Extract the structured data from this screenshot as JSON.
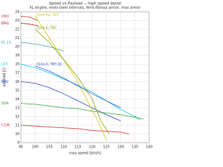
{
  "chart_data": {
    "type": "line",
    "title": "Speed vs Payload -- high speed detail",
    "subtitle": "XL engine, endo-steel internals, ferro-fibrous armor, max armor",
    "x_label": "max speed [km/h]",
    "y_label": "payload [t]",
    "xlim": [
      95,
      140
    ],
    "xticks": [
      95,
      100,
      105,
      110,
      115,
      120,
      125,
      130,
      135,
      140
    ],
    "ylim": [
      9,
      24
    ],
    "yticks": [
      9,
      10,
      11,
      12,
      13,
      14,
      15,
      16,
      17,
      18,
      19,
      20,
      21,
      22,
      23,
      24
    ],
    "grid": true,
    "series": [
      {
        "name": "DKO",
        "color": "#d62728",
        "x": [
          95,
          98,
          101
        ],
        "values": [
          23.5,
          23.4,
          23
        ]
      },
      {
        "name": "BRG",
        "color": "#b22222",
        "x": [
          95,
          98,
          101
        ],
        "values": [
          22.7,
          22.6,
          22.4
        ]
      },
      {
        "name": "KL LX",
        "color": "#2ca0a0",
        "x": [
          95,
          100,
          105,
          110
        ],
        "values": [
          20.5,
          20.3,
          20,
          19.5
        ]
      },
      {
        "name": "LEX",
        "color": "#00c8d8",
        "x": [
          95,
          100,
          105,
          110,
          115,
          120,
          125,
          130,
          135,
          137
        ],
        "values": [
          18,
          17.6,
          17,
          16.3,
          15.6,
          14.8,
          13.8,
          12.8,
          12,
          11.6
        ]
      },
      {
        "name": "BRV",
        "color": "#1f3fbf",
        "x": [
          95,
          100,
          105,
          110,
          115,
          120,
          125,
          130
        ],
        "values": [
          16,
          15.8,
          15.3,
          14.6,
          13.8,
          13,
          12.2,
          11.5
        ]
      },
      {
        "name": "SDR",
        "color": "#2ca02c",
        "x": [
          95,
          100,
          105,
          110,
          115,
          120,
          125,
          130,
          135,
          138
        ],
        "values": [
          13.5,
          13.4,
          13.2,
          13,
          12.9,
          12.6,
          12.4,
          12.2,
          11.9,
          11.7
        ]
      },
      {
        "name": "COM",
        "color": "#e03030",
        "x": [
          95,
          100,
          105,
          110,
          115,
          120,
          125,
          130,
          133
        ],
        "values": [
          11,
          10.9,
          10.8,
          10.7,
          10.6,
          10.4,
          10.3,
          10.2,
          10
        ]
      },
      {
        "name": "Clint-IIa: TBT",
        "color": "#d4c800",
        "x": [
          100,
          103,
          106,
          110,
          114,
          118,
          122,
          125
        ],
        "values": [
          23.5,
          22,
          20.5,
          18.5,
          16.5,
          14,
          11.5,
          9.3
        ]
      },
      {
        "name": "Clint-II: TBT",
        "color": "#8a9a00",
        "x": [
          100,
          105,
          110,
          115,
          120,
          123,
          126
        ],
        "values": [
          22,
          20.5,
          18.5,
          16.5,
          14,
          11.5,
          10
        ]
      },
      {
        "name": "Clint-II: TBT-3C",
        "color": "#3050e0",
        "x": [
          100,
          105,
          110,
          115,
          120,
          125,
          130
        ],
        "values": [
          17.8,
          17.2,
          16.4,
          15.5,
          14.6,
          13.8,
          13
        ]
      }
    ]
  }
}
